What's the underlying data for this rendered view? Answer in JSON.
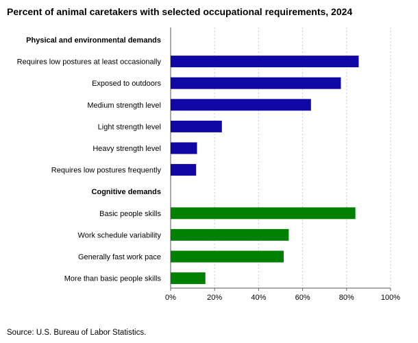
{
  "chart_data": {
    "type": "bar",
    "orientation": "horizontal",
    "title": "Percent of animal caretakers with selected occupational requirements, 2024",
    "source": "Source: U.S. Bureau of Labor Statistics.",
    "xlabel": "",
    "ylabel": "",
    "xlim": [
      0,
      100
    ],
    "x_ticks": [
      "0%",
      "20%",
      "40%",
      "60%",
      "80%",
      "100%"
    ],
    "grid": "vertical dotted",
    "groups": [
      {
        "name": "Physical and environmental demands",
        "color": "#1007a4",
        "categories": [
          "Requires low postures at least occasionally",
          "Exposed to outdoors",
          "Medium strength level",
          "Light strength level",
          "Heavy strength level",
          "Requires low postures frequently"
        ],
        "values": [
          85.5,
          77.4,
          63.8,
          23.3,
          12.0,
          11.6
        ]
      },
      {
        "name": "Cognitive demands",
        "color": "#008000",
        "categories": [
          "Basic people skills",
          "Work schedule variability",
          "Generally fast work pace",
          "More than basic people skills"
        ],
        "values": [
          84.0,
          53.7,
          51.4,
          15.8
        ]
      }
    ]
  }
}
